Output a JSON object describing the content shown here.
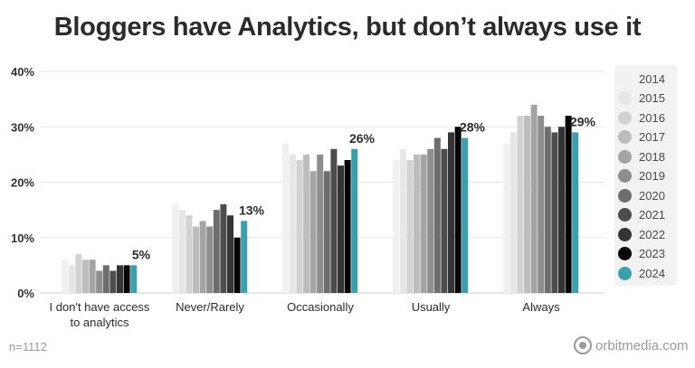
{
  "title": "Bloggers have Analytics, but don’t always use it",
  "note": "n=1112",
  "brand": {
    "text": "orbitmedia.com",
    "icon": "orbit-logo-icon"
  },
  "legend": {
    "placement": "right",
    "items": [
      {
        "label": "2014",
        "color": "#f0f0f0"
      },
      {
        "label": "2015",
        "color": "#e6e6e6"
      },
      {
        "label": "2016",
        "color": "#d2d2d2"
      },
      {
        "label": "2017",
        "color": "#bdbdbd"
      },
      {
        "label": "2018",
        "color": "#a4a4a4"
      },
      {
        "label": "2019",
        "color": "#8e8e8e"
      },
      {
        "label": "2020",
        "color": "#6d6d6d"
      },
      {
        "label": "2021",
        "color": "#4d4d4d"
      },
      {
        "label": "2022",
        "color": "#343434"
      },
      {
        "label": "2023",
        "color": "#050505"
      },
      {
        "label": "2024",
        "color": "#3aa0ad"
      }
    ]
  },
  "chart_data": {
    "type": "bar",
    "title": "Bloggers have Analytics, but don’t always use it",
    "categories": [
      "I don't have access\nto analytics",
      "Never/Rarely",
      "Occasionally",
      "Usually",
      "Always"
    ],
    "ylim": [
      0,
      40
    ],
    "yticks": [
      "0%",
      "10%",
      "20%",
      "30%",
      "40%"
    ],
    "grid": true,
    "legend": "right",
    "series": [
      {
        "name": "2014",
        "values": [
          6,
          16,
          27,
          24,
          27
        ]
      },
      {
        "name": "2015",
        "values": [
          5,
          15,
          25,
          26,
          29
        ]
      },
      {
        "name": "2016",
        "values": [
          7,
          14,
          24,
          24,
          32
        ]
      },
      {
        "name": "2017",
        "values": [
          6,
          12,
          25,
          25,
          32
        ]
      },
      {
        "name": "2018",
        "values": [
          6,
          13,
          22,
          25,
          34
        ]
      },
      {
        "name": "2019",
        "values": [
          4,
          12,
          25,
          26,
          32
        ]
      },
      {
        "name": "2020",
        "values": [
          5,
          15,
          22,
          28,
          30
        ]
      },
      {
        "name": "2021",
        "values": [
          4,
          16,
          26,
          26,
          29
        ]
      },
      {
        "name": "2022",
        "values": [
          5,
          14,
          23,
          29,
          30
        ]
      },
      {
        "name": "2023",
        "values": [
          5,
          10,
          24,
          30,
          32
        ]
      },
      {
        "name": "2024",
        "values": [
          5,
          13,
          26,
          28,
          29
        ]
      }
    ],
    "data_labels": [
      "5%",
      "13%",
      "26%",
      "28%",
      "29%"
    ]
  }
}
